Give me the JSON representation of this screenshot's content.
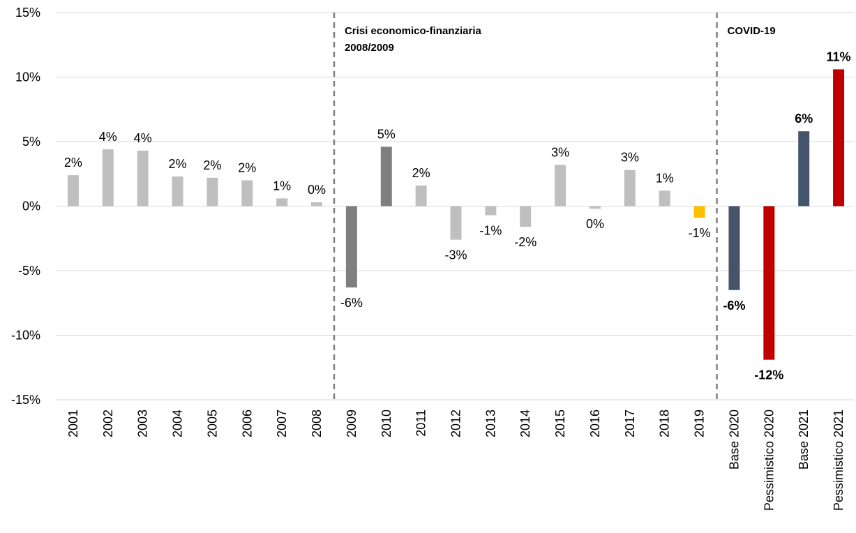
{
  "chart_data": {
    "type": "bar",
    "title": "",
    "xlabel": "",
    "ylabel": "",
    "ylim": [
      -15,
      15
    ],
    "yticks": [
      15,
      10,
      5,
      0,
      -5,
      -10,
      -15
    ],
    "ytick_labels": [
      "15%",
      "10%",
      "5%",
      "0%",
      "-5%",
      "-10%",
      "-15%"
    ],
    "grid": true,
    "categories": [
      "2001",
      "2002",
      "2003",
      "2004",
      "2005",
      "2006",
      "2007",
      "2008",
      "2009",
      "2010",
      "2011",
      "2012",
      "2013",
      "2014",
      "2015",
      "2016",
      "2017",
      "2018",
      "2019",
      "Base 2020",
      "Pessimistico 2020",
      "Base 2021",
      "Pessimistico 2021"
    ],
    "values": [
      2.4,
      4.4,
      4.3,
      2.3,
      2.2,
      2.0,
      0.6,
      0.3,
      -6.3,
      4.6,
      1.6,
      -2.6,
      -0.7,
      -1.6,
      3.2,
      -0.2,
      2.8,
      1.2,
      -0.9,
      -6.5,
      -11.9,
      5.8,
      10.6
    ],
    "labels": [
      "2%",
      "4%",
      "4%",
      "2%",
      "2%",
      "2%",
      "1%",
      "0%",
      "-6%",
      "5%",
      "2%",
      "-3%",
      "-1%",
      "-2%",
      "3%",
      "0%",
      "3%",
      "1%",
      "-1%",
      "-6%",
      "-12%",
      "6%",
      "11%"
    ],
    "colors": [
      "#bfbfbf",
      "#bfbfbf",
      "#bfbfbf",
      "#bfbfbf",
      "#bfbfbf",
      "#bfbfbf",
      "#bfbfbf",
      "#bfbfbf",
      "#7f7f7f",
      "#7f7f7f",
      "#bfbfbf",
      "#bfbfbf",
      "#bfbfbf",
      "#bfbfbf",
      "#bfbfbf",
      "#bfbfbf",
      "#bfbfbf",
      "#bfbfbf",
      "#ffc000",
      "#44546a",
      "#c00000",
      "#44546a",
      "#c00000"
    ],
    "bold_labels": [
      false,
      false,
      false,
      false,
      false,
      false,
      false,
      false,
      false,
      false,
      false,
      false,
      false,
      false,
      false,
      false,
      false,
      false,
      false,
      true,
      true,
      true,
      true
    ],
    "annotations": [
      {
        "after_category": "2008",
        "lines": [
          "Crisi economico-finanziaria",
          "2008/2009"
        ]
      },
      {
        "after_category": "2019",
        "lines": [
          "COVID-19"
        ]
      }
    ]
  }
}
